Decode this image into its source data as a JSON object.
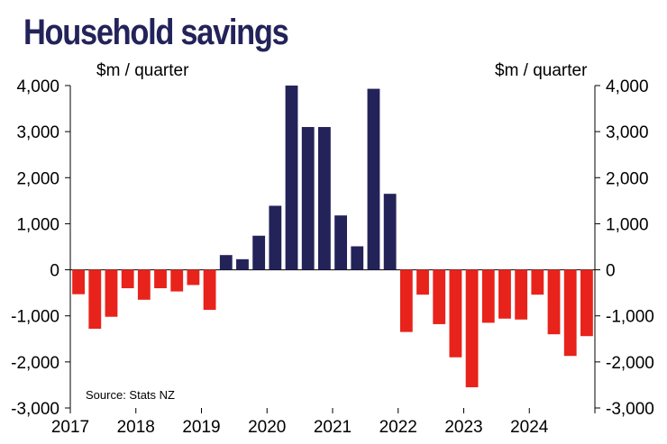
{
  "title": "Household savings",
  "unit_left": "$m / quarter",
  "unit_right": "$m / quarter",
  "source": "Source: Stats NZ",
  "colors": {
    "positive": "#23235a",
    "negative": "#e8231b",
    "title": "#23235a"
  },
  "chart_data": {
    "type": "bar",
    "title": "Household savings",
    "ylabel": "$m / quarter",
    "ylim": [
      -3000,
      4000
    ],
    "yticks": [
      4000,
      3000,
      2000,
      1000,
      0,
      -1000,
      -2000,
      -3000
    ],
    "ytick_labels": [
      "4,000",
      "3,000",
      "2,000",
      "1,000",
      "0",
      "-1,000",
      "-2,000",
      "-3,000"
    ],
    "xtick_labels": [
      "2017",
      "2018",
      "2019",
      "2020",
      "2021",
      "2022",
      "2023",
      "2024"
    ],
    "quarters_start": "2017 Q1",
    "values": [
      -530,
      -1280,
      -1020,
      -400,
      -650,
      -400,
      -470,
      -330,
      -870,
      320,
      230,
      740,
      1390,
      4000,
      3100,
      3100,
      1180,
      510,
      3930,
      1650,
      -1350,
      -540,
      -1180,
      -1900,
      -2550,
      -1150,
      -1060,
      -1080,
      -540,
      -1400,
      -1870,
      -1440
    ],
    "grid": false
  }
}
